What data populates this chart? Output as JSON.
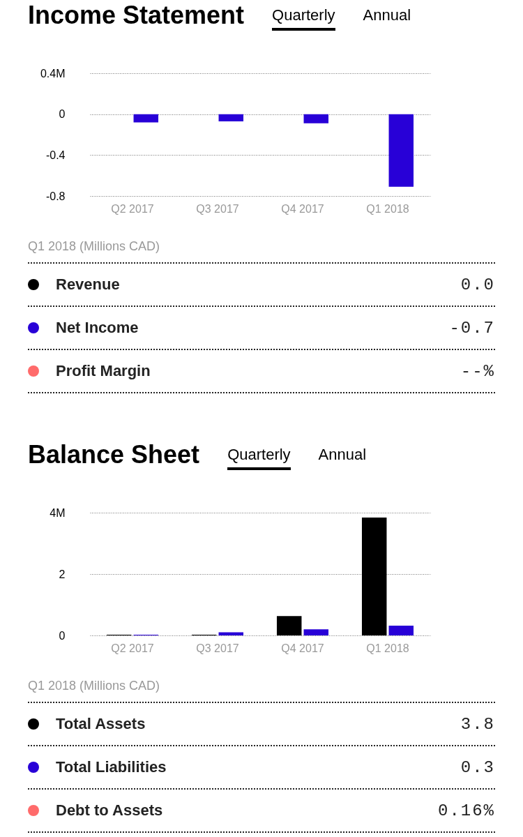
{
  "chart_data": [
    {
      "type": "bar",
      "title": "Income Statement",
      "annotations": [
        "Quarterly",
        "Annual",
        "Q1 2018 (Millions CAD)",
        "0.0",
        "-0.7",
        "--%"
      ],
      "categories": [
        "Q2 2017",
        "Q3 2017",
        "Q4 2017",
        "Q1 2018"
      ],
      "series": [
        {
          "name": "Revenue",
          "color": "#000000",
          "values": [
            0,
            0,
            0,
            0
          ]
        },
        {
          "name": "Net Income",
          "color": "#2800d7",
          "values": [
            -0.08,
            -0.07,
            -0.09,
            -0.71
          ]
        },
        {
          "name": "Profit Margin",
          "color": "#ff6b6b",
          "type": "line",
          "values": [
            null,
            null,
            null,
            null
          ]
        }
      ],
      "ylim": [
        -0.8,
        0.4
      ],
      "yticks": [
        -0.8,
        -0.4,
        0,
        {
          "value": 0.4,
          "label": "0.4M"
        }
      ],
      "grid": "y",
      "legend": "bottom"
    },
    {
      "type": "bar",
      "title": "Balance Sheet",
      "annotations": [
        "Quarterly",
        "Annual",
        "Q1 2018 (Millions CAD)",
        "3.8",
        "0.3",
        "0.16%"
      ],
      "categories": [
        "Q2 2017",
        "Q3 2017",
        "Q4 2017",
        "Q1 2018"
      ],
      "series": [
        {
          "name": "Total Assets",
          "color": "#000000",
          "values": [
            0.02,
            0.02,
            0.63,
            3.84
          ]
        },
        {
          "name": "Total Liabilities",
          "color": "#2800d7",
          "values": [
            0.02,
            0.1,
            0.2,
            0.32
          ]
        },
        {
          "name": "Debt to Assets",
          "color": "#ff6b6b",
          "type": "line",
          "values": [
            null,
            null,
            null,
            null
          ]
        }
      ],
      "ylim": [
        0,
        4
      ],
      "yticks": [
        0,
        2,
        {
          "value": 4,
          "label": "4M"
        }
      ],
      "grid": "y",
      "legend": "bottom"
    }
  ]
}
